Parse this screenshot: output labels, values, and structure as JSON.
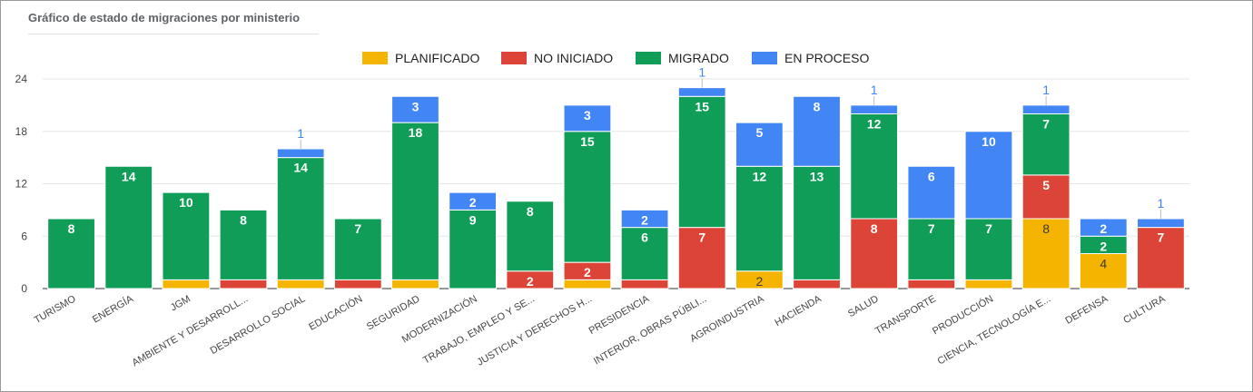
{
  "header": {
    "title": "Gráfico de estado de migraciones por ministerio"
  },
  "chart_data": {
    "type": "bar",
    "stacked": true,
    "categories": [
      "TURISMO",
      "ENERGÍA",
      "JGM",
      "AMBIENTE Y DESARROLL...",
      "DESARROLLO SOCIAL",
      "EDUCACIÓN",
      "SEGURIDAD",
      "MODERNIZACIÓN",
      "TRABAJO, EMPLEO Y SE...",
      "JUSTICIA Y DERECHOS H...",
      "PRESIDENCIA",
      "INTERIOR, OBRAS PÚBLI...",
      "AGROINDUSTRIA",
      "HACIENDA",
      "SALUD",
      "TRANSPORTE",
      "PRODUCCIÓN",
      "CIENCIA, TECNOLOGÍA E...",
      "DEFENSA",
      "CULTURA"
    ],
    "series": [
      {
        "name": "PLANIFICADO",
        "color": "#f4b400",
        "values": [
          0,
          0,
          1,
          0,
          1,
          0,
          1,
          0,
          0,
          1,
          0,
          0,
          2,
          0,
          0,
          0,
          1,
          8,
          4,
          0
        ]
      },
      {
        "name": "NO INICIADO",
        "color": "#db4437",
        "values": [
          0,
          0,
          0,
          1,
          0,
          1,
          0,
          0,
          2,
          2,
          1,
          7,
          0,
          1,
          8,
          1,
          0,
          5,
          0,
          7
        ]
      },
      {
        "name": "MIGRADO",
        "color": "#0f9d58",
        "values": [
          8,
          14,
          10,
          8,
          14,
          7,
          18,
          9,
          8,
          15,
          6,
          15,
          12,
          13,
          12,
          7,
          7,
          7,
          2,
          0
        ]
      },
      {
        "name": "EN PROCESO",
        "color": "#4285f4",
        "values": [
          0,
          0,
          0,
          0,
          1,
          0,
          3,
          2,
          0,
          3,
          2,
          1,
          5,
          8,
          1,
          6,
          10,
          1,
          2,
          1
        ]
      }
    ],
    "ylim": [
      0,
      24
    ],
    "yticks": [
      0,
      6,
      12,
      18,
      24
    ],
    "legend_position": "top",
    "grid": true
  }
}
